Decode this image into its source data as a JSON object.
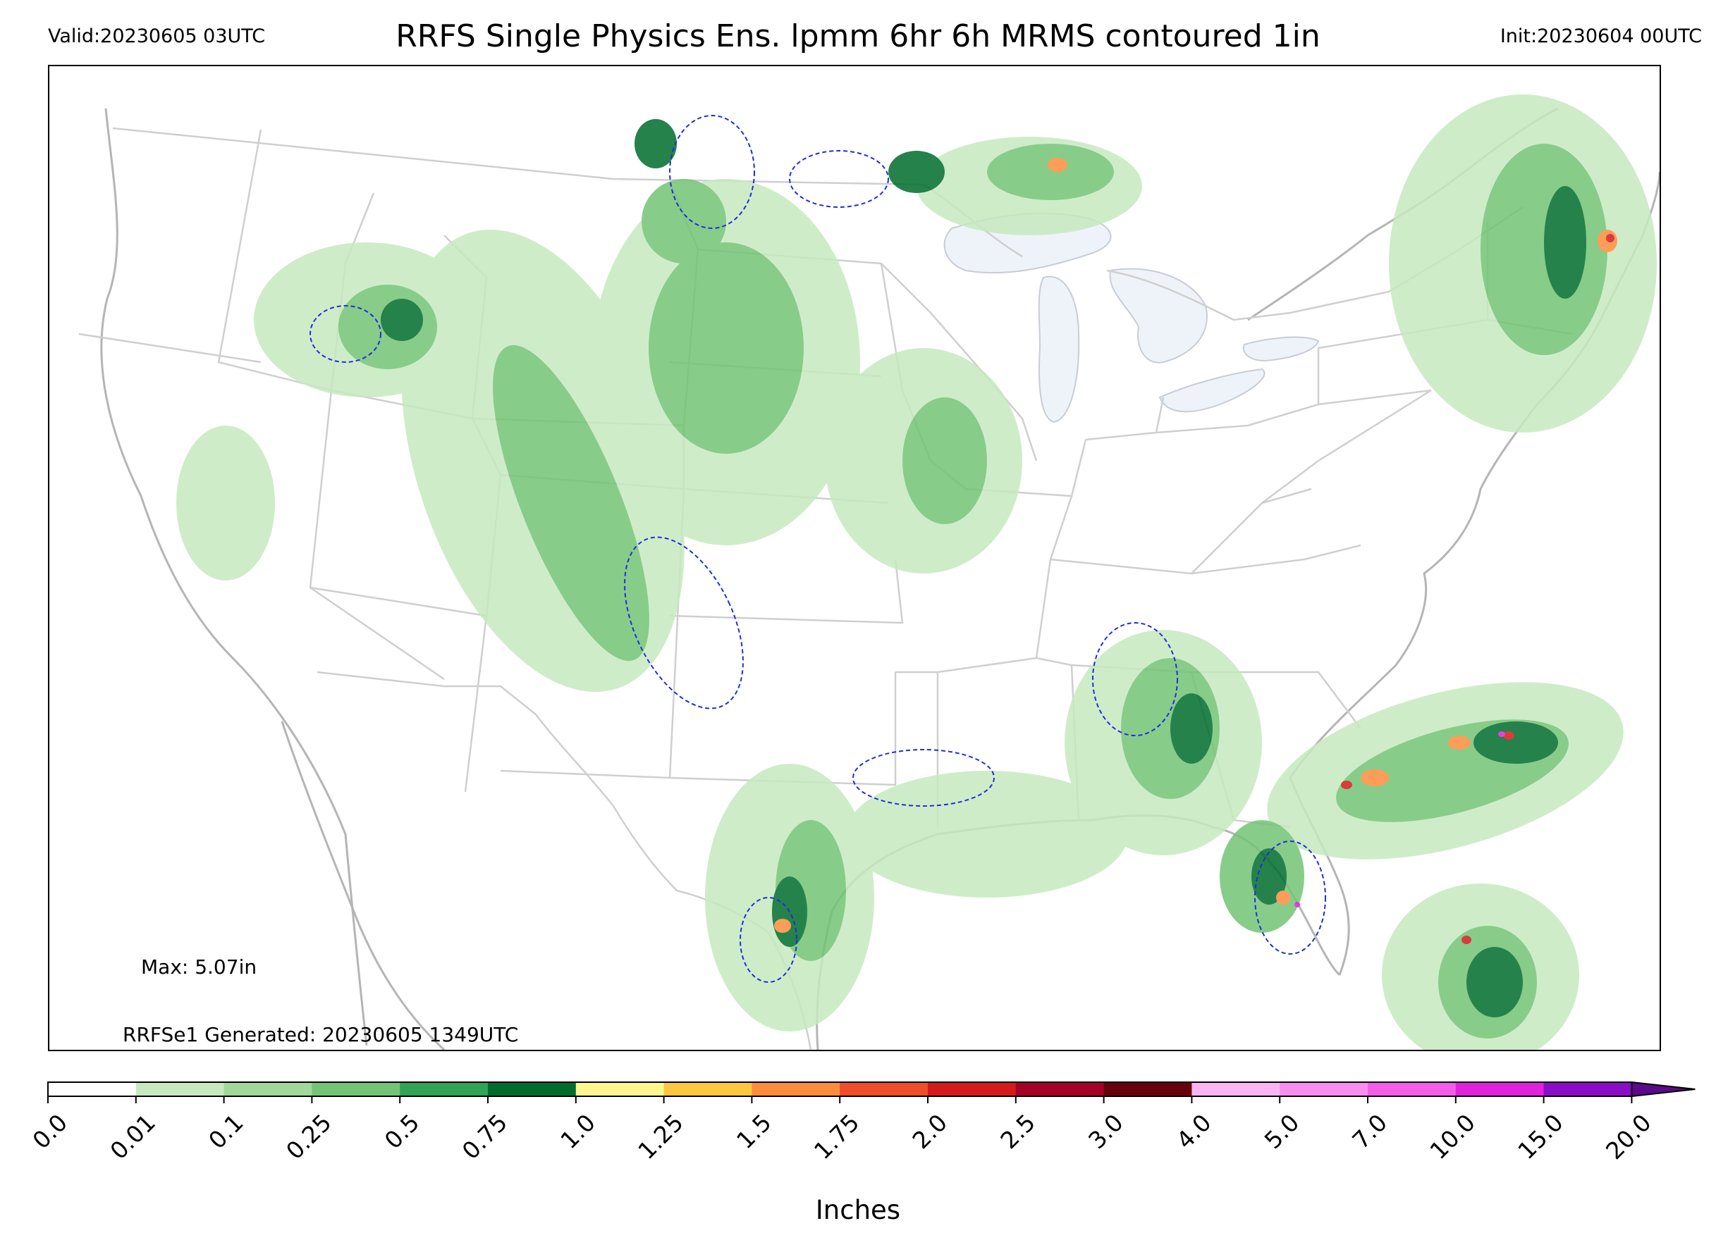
{
  "header": {
    "valid": "Valid:20230605 03UTC",
    "title": "RRFS Single Physics Ens. lpmm 6hr 6h MRMS contoured 1in",
    "init": "Init:20230604 00UTC"
  },
  "annotations": {
    "max": "Max: 5.07in",
    "generated": "RRFSe1 Generated: 20230605 1349UTC"
  },
  "colorbar": {
    "label": "Inches",
    "ticks": [
      "0.0",
      "0.01",
      "0.1",
      "0.25",
      "0.5",
      "0.75",
      "1.0",
      "1.25",
      "1.5",
      "1.75",
      "2.0",
      "2.5",
      "3.0",
      "4.0",
      "5.0",
      "7.0",
      "10.0",
      "15.0",
      "20.0"
    ],
    "colors": [
      "#ffffff",
      "#c7e9c0",
      "#a1d99b",
      "#74c476",
      "#31a354",
      "#006d2c",
      "#fff68f",
      "#fdc740",
      "#fd8d3c",
      "#f04d2a",
      "#d41a1a",
      "#a50026",
      "#67000d",
      "#f9b4f1",
      "#f88ff0",
      "#f25ee8",
      "#e021dd",
      "#8a0dc8"
    ],
    "extend_color": "#5a0a8a"
  },
  "map_colors": {
    "state_lines": "#bdbdbd",
    "water": "#eef3fa",
    "contour_1in": "#1f2fd8"
  }
}
